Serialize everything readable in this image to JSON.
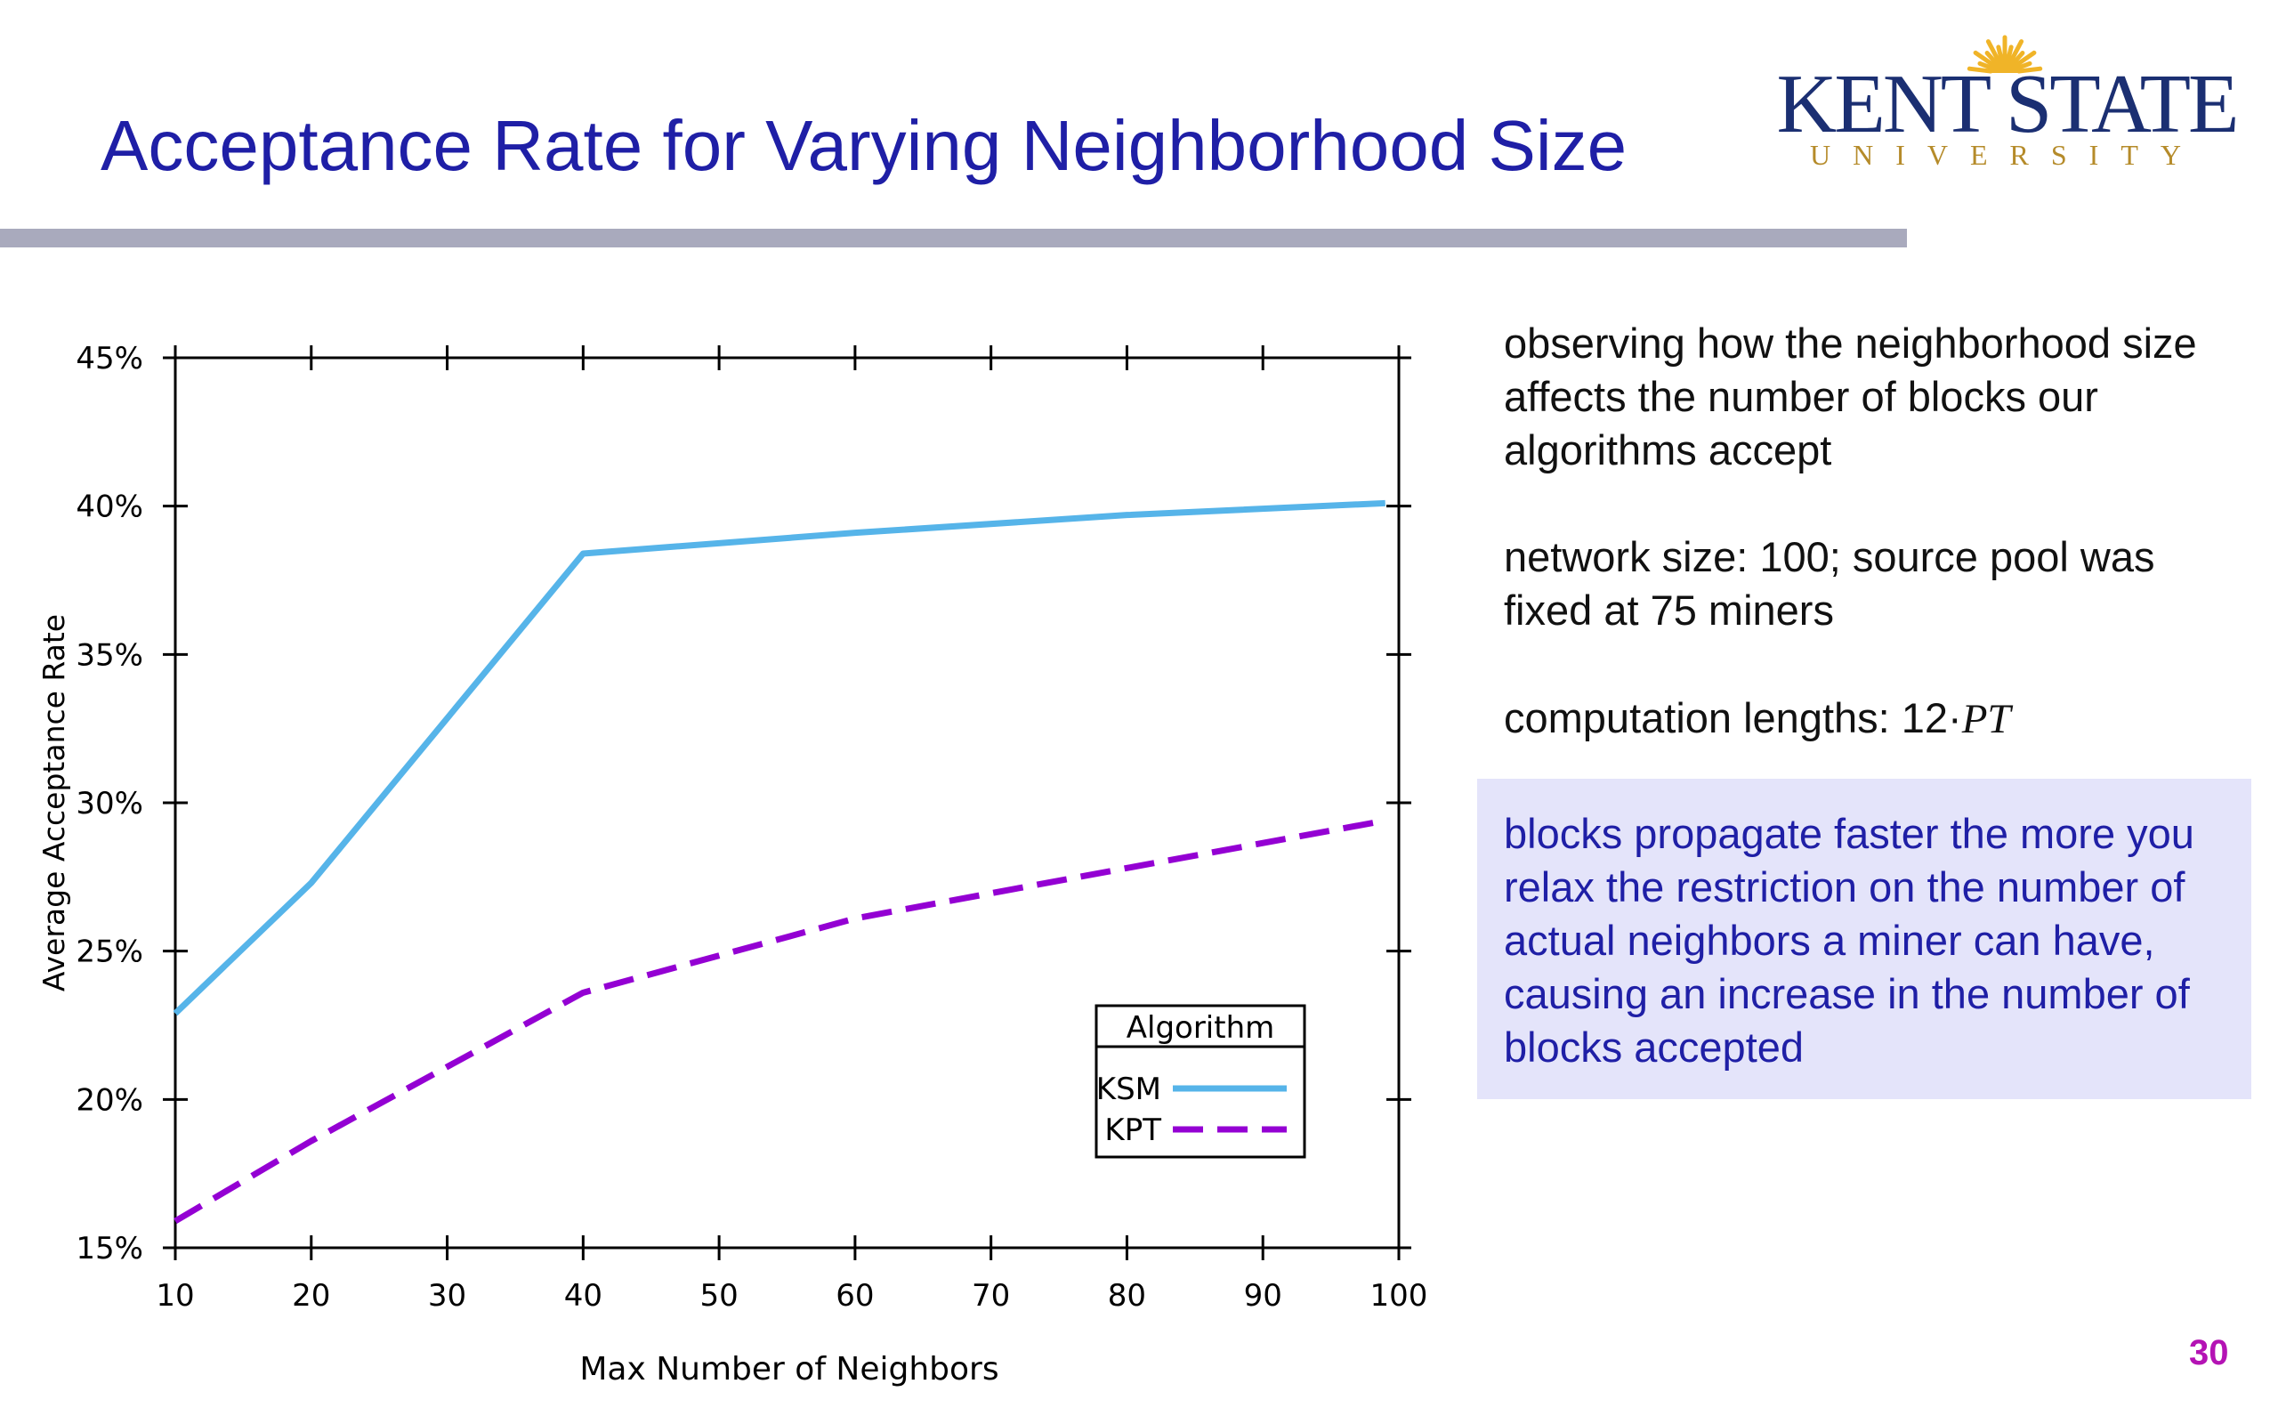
{
  "slide": {
    "title": "Acceptance Rate for Varying Neighborhood Size",
    "page_number": "30",
    "logo": {
      "main": "KENT STATE",
      "sub": "UNIVERSITY",
      "sun_color": "#f0b428"
    }
  },
  "notes": [
    "observing how the neighborhood size affects the number of blocks our algorithms accept",
    "network size: 100; source pool was fixed at 75 miners"
  ],
  "computation": {
    "label": "computation lengths: 12·",
    "expr": "PT"
  },
  "callout": "blocks propagate faster the more you relax the restriction on the number of actual neighbors a miner can have, causing an increase in the number of blocks accepted",
  "chart_data": {
    "type": "line",
    "title": "",
    "xlabel": "Max Number of Neighbors",
    "ylabel": "Average Acceptance Rate",
    "xlim": [
      10,
      100
    ],
    "ylim": [
      15,
      45
    ],
    "x_ticks": [
      10,
      20,
      30,
      40,
      50,
      60,
      70,
      80,
      90,
      100
    ],
    "y_ticks": [
      15,
      20,
      25,
      30,
      35,
      40,
      45
    ],
    "y_tick_suffix": "%",
    "grid": false,
    "legend": {
      "title": "Algorithm",
      "position": "bottom-right"
    },
    "series": [
      {
        "name": "KSM",
        "color": "#56b4e9",
        "dash": "solid",
        "x": [
          10,
          20,
          40,
          60,
          80,
          99
        ],
        "y": [
          22.9,
          27.3,
          38.4,
          39.1,
          39.7,
          40.1
        ]
      },
      {
        "name": "KPT",
        "color": "#9400d3",
        "dash": "dashed",
        "x": [
          10,
          20,
          40,
          60,
          80,
          99
        ],
        "y": [
          15.9,
          18.6,
          23.6,
          26.1,
          27.8,
          29.4
        ]
      }
    ]
  }
}
